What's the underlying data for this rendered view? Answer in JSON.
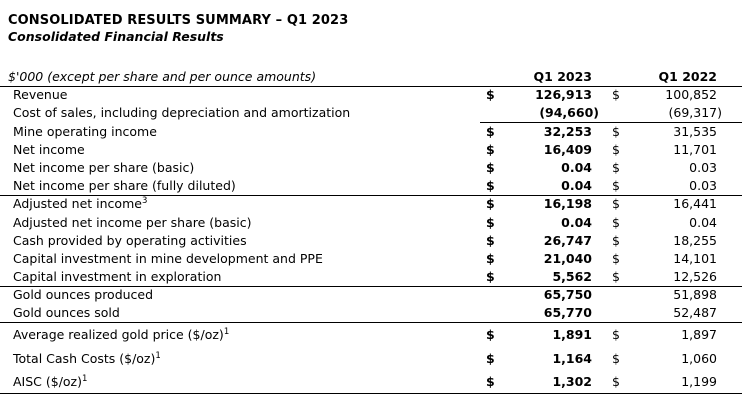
{
  "page": {
    "title": "CONSOLIDATED RESULTS SUMMARY – Q1 2023",
    "subtitle": "Consolidated Financial Results"
  },
  "colors": {
    "text": "#000000",
    "background": "#ffffff",
    "rule": "#000000"
  },
  "table": {
    "unit_label": "$'000 (except per share and per ounce amounts)",
    "columns": [
      "Q1 2023",
      "Q1 2022"
    ],
    "rows": [
      {
        "label": "Revenue",
        "sup": "",
        "d1": "$",
        "v1": "126,913",
        "d2": "$",
        "v2": "100,852",
        "rule": "",
        "tall": false
      },
      {
        "label": "Cost of sales, including depreciation and amortization",
        "sup": "",
        "d1": "",
        "v1": "(94,660)",
        "d2": "",
        "v2": "(69,317)",
        "rule": "values",
        "tall": false
      },
      {
        "label": "Mine operating income",
        "sup": "",
        "d1": "$",
        "v1": "32,253",
        "d2": "$",
        "v2": "31,535",
        "rule": "",
        "tall": false
      },
      {
        "label": "Net income",
        "sup": "",
        "d1": "$",
        "v1": "16,409",
        "d2": "$",
        "v2": "11,701",
        "rule": "",
        "tall": false
      },
      {
        "label": "Net income per share (basic)",
        "sup": "",
        "d1": "$",
        "v1": "0.04",
        "d2": "$",
        "v2": "0.03",
        "rule": "",
        "tall": false
      },
      {
        "label": "Net income per share (fully diluted)",
        "sup": "",
        "d1": "$",
        "v1": "0.04",
        "d2": "$",
        "v2": "0.03",
        "rule": "full",
        "tall": false
      },
      {
        "label": "Adjusted net income",
        "sup": "3",
        "d1": "$",
        "v1": "16,198",
        "d2": "$",
        "v2": "16,441",
        "rule": "",
        "tall": false
      },
      {
        "label": "Adjusted net income per share (basic)",
        "sup": "",
        "d1": "$",
        "v1": "0.04",
        "d2": "$",
        "v2": "0.04",
        "rule": "",
        "tall": false
      },
      {
        "label": "Cash provided by operating activities",
        "sup": "",
        "d1": "$",
        "v1": "26,747",
        "d2": "$",
        "v2": "18,255",
        "rule": "",
        "tall": false
      },
      {
        "label": "Capital investment in mine development and PPE",
        "sup": "",
        "d1": "$",
        "v1": "21,040",
        "d2": "$",
        "v2": "14,101",
        "rule": "",
        "tall": false
      },
      {
        "label": "Capital investment in exploration",
        "sup": "",
        "d1": "$",
        "v1": "5,562",
        "d2": "$",
        "v2": "12,526",
        "rule": "full",
        "tall": false
      },
      {
        "label": "Gold ounces produced",
        "sup": "",
        "d1": "",
        "v1": "65,750",
        "d2": "",
        "v2": "51,898",
        "rule": "",
        "tall": false
      },
      {
        "label": "Gold ounces sold",
        "sup": "",
        "d1": "",
        "v1": "65,770",
        "d2": "",
        "v2": "52,487",
        "rule": "full",
        "tall": false
      },
      {
        "label": "Average realized gold price ($/oz)",
        "sup": "1",
        "d1": "$",
        "v1": "1,891",
        "d2": "$",
        "v2": "1,897",
        "rule": "",
        "tall": true
      },
      {
        "label": "Total Cash Costs ($/oz)",
        "sup": "1",
        "d1": "$",
        "v1": "1,164",
        "d2": "$",
        "v2": "1,060",
        "rule": "",
        "tall": true
      },
      {
        "label": "AISC ($/oz)",
        "sup": "1",
        "d1": "$",
        "v1": "1,302",
        "d2": "$",
        "v2": "1,199",
        "rule": "full",
        "tall": true
      }
    ]
  }
}
